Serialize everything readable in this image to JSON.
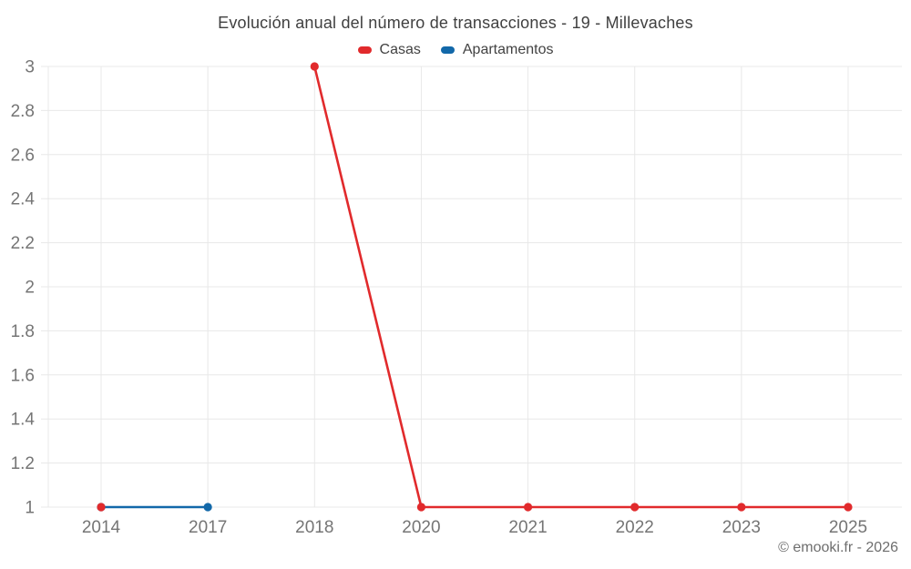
{
  "page": {
    "copyright": "© emooki.fr - 2026"
  },
  "chart_data": {
    "type": "line",
    "title": "Evolución anual del número de transacciones - 19 - Millevaches",
    "categories": [
      "2014",
      "2017",
      "2018",
      "2020",
      "2021",
      "2022",
      "2023",
      "2025"
    ],
    "series": [
      {
        "name": "Casas",
        "color": "#e12a2c",
        "values": [
          1,
          null,
          3,
          1,
          1,
          1,
          1,
          1
        ]
      },
      {
        "name": "Apartamentos",
        "color": "#1268a9",
        "values": [
          1,
          1,
          null,
          null,
          null,
          null,
          null,
          null
        ]
      }
    ],
    "ylim": [
      1,
      3
    ],
    "yticks": [
      "1",
      "1.2",
      "1.4",
      "1.6",
      "1.8",
      "2",
      "2.2",
      "2.4",
      "2.6",
      "2.8",
      "3"
    ],
    "grid": true,
    "legend_position": "top",
    "colors": {
      "grid": "#e8e8e8",
      "tick_text": "#757575"
    }
  }
}
